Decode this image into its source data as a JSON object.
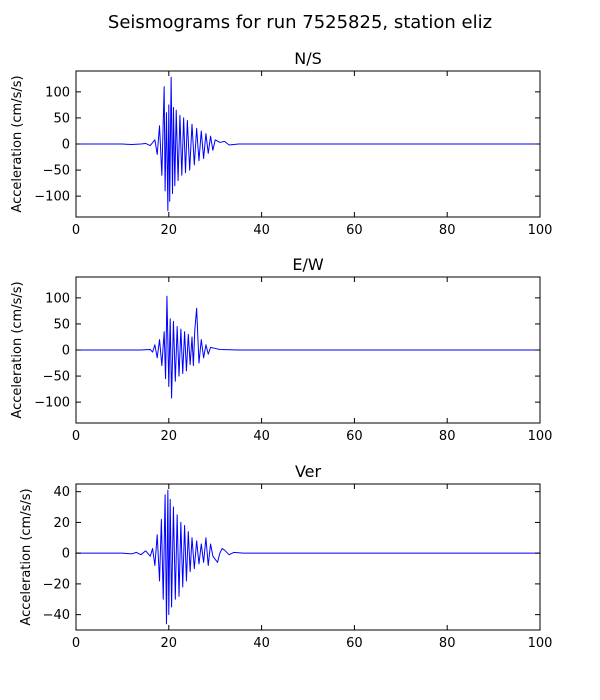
{
  "figure": {
    "suptitle": "Seismograms for run 7525825, station eliz"
  },
  "colors": {
    "trace": "#0000ff",
    "axes": "#000000",
    "background": "#ffffff"
  },
  "chart_data": [
    {
      "type": "line",
      "title": "N/S",
      "ylabel": "Acceleration (cm/s/s)",
      "xlabel": "",
      "xlim": [
        0,
        100
      ],
      "ylim": [
        -140,
        140
      ],
      "xticks": [
        0,
        20,
        40,
        60,
        80,
        100
      ],
      "yticks": [
        100,
        50,
        0,
        -50,
        -100
      ],
      "ytick_labels": [
        "100",
        "50",
        "0",
        "−50",
        "−100"
      ],
      "grid": false,
      "series": [
        {
          "x": [
            0,
            5,
            10,
            12,
            14,
            15,
            16,
            17,
            17.5,
            18,
            18.5,
            19,
            19.2,
            19.5,
            19.8,
            20,
            20.2,
            20.5,
            20.8,
            21,
            21.3,
            21.6,
            22,
            22.4,
            22.8,
            23.2,
            23.6,
            24,
            24.5,
            25,
            25.5,
            26,
            26.5,
            27,
            27.5,
            28,
            28.5,
            29,
            29.5,
            30,
            31,
            32,
            33,
            35,
            40,
            50,
            60,
            70,
            80,
            90,
            100
          ],
          "values": [
            0,
            0,
            0,
            -1,
            0,
            1,
            -3,
            8,
            -20,
            35,
            -60,
            110,
            -90,
            60,
            -128,
            75,
            -110,
            128,
            -95,
            70,
            -80,
            65,
            -70,
            55,
            -60,
            50,
            -55,
            45,
            -50,
            38,
            -40,
            30,
            -32,
            25,
            -28,
            20,
            -18,
            15,
            -12,
            8,
            3,
            5,
            -2,
            0,
            0,
            0,
            0,
            0,
            0,
            0,
            0
          ]
        }
      ]
    },
    {
      "type": "line",
      "title": "E/W",
      "ylabel": "Acceleration (cm/s/s)",
      "xlabel": "",
      "xlim": [
        0,
        100
      ],
      "ylim": [
        -140,
        140
      ],
      "xticks": [
        0,
        20,
        40,
        60,
        80,
        100
      ],
      "yticks": [
        100,
        50,
        0,
        -50,
        -100
      ],
      "ytick_labels": [
        "100",
        "50",
        "0",
        "−50",
        "−100"
      ],
      "grid": false,
      "series": [
        {
          "x": [
            0,
            5,
            10,
            14,
            16,
            16.5,
            17,
            17.5,
            18,
            18.5,
            19,
            19.3,
            19.6,
            20,
            20.3,
            20.6,
            21,
            21.4,
            21.8,
            22.2,
            22.6,
            23,
            23.4,
            23.8,
            24.2,
            24.6,
            25,
            25.3,
            25.6,
            26,
            26.5,
            27,
            27.5,
            28,
            28.5,
            29,
            30,
            31,
            35,
            40,
            50,
            60,
            70,
            80,
            90,
            100
          ],
          "values": [
            0,
            0,
            0,
            0,
            1,
            -4,
            10,
            -15,
            20,
            -30,
            35,
            -55,
            103,
            -70,
            60,
            -92,
            55,
            -60,
            45,
            -50,
            40,
            -45,
            35,
            -40,
            30,
            -28,
            25,
            -30,
            38,
            80,
            -25,
            20,
            -15,
            10,
            -8,
            5,
            3,
            1,
            0,
            0,
            0,
            0,
            0,
            0,
            0,
            0
          ]
        }
      ]
    },
    {
      "type": "line",
      "title": "Ver",
      "ylabel": "Acceleration (cm/s/s)",
      "xlabel": "",
      "xlim": [
        0,
        100
      ],
      "ylim": [
        -50,
        45
      ],
      "xticks": [
        0,
        20,
        40,
        60,
        80,
        100
      ],
      "yticks": [
        40,
        20,
        0,
        -20,
        -40
      ],
      "ytick_labels": [
        "40",
        "20",
        "0",
        "−20",
        "−40"
      ],
      "grid": false,
      "series": [
        {
          "x": [
            0,
            5,
            10,
            12,
            13,
            14,
            15,
            16,
            16.5,
            17,
            17.5,
            18,
            18.4,
            18.8,
            19.2,
            19.5,
            19.8,
            20,
            20.3,
            20.6,
            21,
            21.4,
            21.8,
            22.2,
            22.6,
            23,
            23.4,
            23.8,
            24.2,
            24.6,
            25,
            25.5,
            26,
            26.5,
            27,
            27.5,
            28,
            28.5,
            29,
            29.5,
            30,
            30.5,
            31,
            31.5,
            32,
            33,
            34,
            36,
            40,
            50,
            60,
            70,
            80,
            90,
            100
          ],
          "values": [
            0,
            0,
            0,
            -0.5,
            0.5,
            -1,
            1.5,
            -2,
            3,
            -8,
            12,
            -18,
            22,
            -30,
            38,
            -46,
            41,
            -40,
            35,
            -35,
            30,
            -30,
            25,
            -28,
            20,
            -22,
            18,
            -18,
            14,
            -12,
            10,
            -10,
            8,
            -7,
            6,
            -6,
            10,
            -8,
            6,
            -2,
            -4,
            -6,
            0,
            3,
            2,
            -1,
            0.5,
            0,
            0,
            0,
            0,
            0,
            0,
            0,
            0
          ]
        }
      ]
    }
  ]
}
